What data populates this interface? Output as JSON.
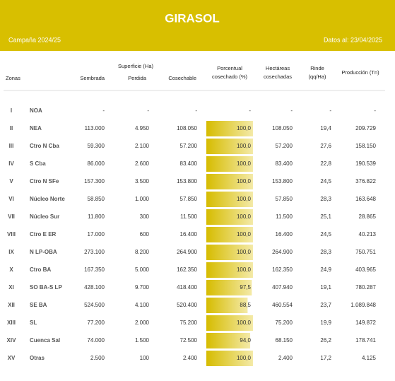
{
  "header": {
    "title": "GIRASOL",
    "campaign": "Campaña 2024/25",
    "date": "Datos al: 23/04/2025"
  },
  "table": {
    "group_header": "Superficie (Ha)",
    "columns": [
      [
        "Zonas"
      ],
      [
        "Sembrada"
      ],
      [
        "Perdida"
      ],
      [
        "Cosechable"
      ],
      [
        "Porcentual",
        "cosechado (%)"
      ],
      [
        "Hectáreas",
        "cosechadas"
      ],
      [
        "Rinde",
        "(qq/Ha)"
      ],
      [
        "Producción (Tn)"
      ]
    ],
    "rows": [
      [
        "I",
        "NOA",
        "-",
        "-",
        "-",
        "-",
        "-",
        "-",
        "-"
      ],
      [
        "II",
        "NEA",
        "113.000",
        "4.950",
        "108.050",
        "100,0",
        "108.050",
        "19,4",
        "209.729"
      ],
      [
        "III",
        "Ctro N Cba",
        "59.300",
        "2.100",
        "57.200",
        "100,0",
        "57.200",
        "27,6",
        "158.150"
      ],
      [
        "IV",
        "S Cba",
        "86.000",
        "2.600",
        "83.400",
        "100,0",
        "83.400",
        "22,8",
        "190.539"
      ],
      [
        "V",
        "Ctro N SFe",
        "157.300",
        "3.500",
        "153.800",
        "100,0",
        "153.800",
        "24,5",
        "376.822"
      ],
      [
        "VI",
        "Núcleo Norte",
        "58.850",
        "1.000",
        "57.850",
        "100,0",
        "57.850",
        "28,3",
        "163.648"
      ],
      [
        "VII",
        "Núcleo Sur",
        "11.800",
        "300",
        "11.500",
        "100,0",
        "11.500",
        "25,1",
        "28.865"
      ],
      [
        "VIII",
        "Ctro E ER",
        "17.000",
        "600",
        "16.400",
        "100,0",
        "16.400",
        "24,5",
        "40.213"
      ],
      [
        "IX",
        "N LP-OBA",
        "273.100",
        "8.200",
        "264.900",
        "100,0",
        "264.900",
        "28,3",
        "750.751"
      ],
      [
        "X",
        "Ctro BA",
        "167.350",
        "5.000",
        "162.350",
        "100,0",
        "162.350",
        "24,9",
        "403.965"
      ],
      [
        "XI",
        "SO BA-S LP",
        "428.100",
        "9.700",
        "418.400",
        "97,5",
        "407.940",
        "19,1",
        "780.287"
      ],
      [
        "XII",
        "SE BA",
        "524.500",
        "4.100",
        "520.400",
        "88,5",
        "460.554",
        "23,7",
        "1.089.848"
      ],
      [
        "XIII",
        "SL",
        "77.200",
        "2.000",
        "75.200",
        "100,0",
        "75.200",
        "19,9",
        "149.872"
      ],
      [
        "XIV",
        "Cuenca Sal",
        "74.000",
        "1.500",
        "72.500",
        "94,0",
        "68.150",
        "26,2",
        "178.741"
      ],
      [
        "XV",
        "Otras",
        "2.500",
        "100",
        "2.400",
        "100,0",
        "2.400",
        "17,2",
        "4.125"
      ]
    ]
  }
}
